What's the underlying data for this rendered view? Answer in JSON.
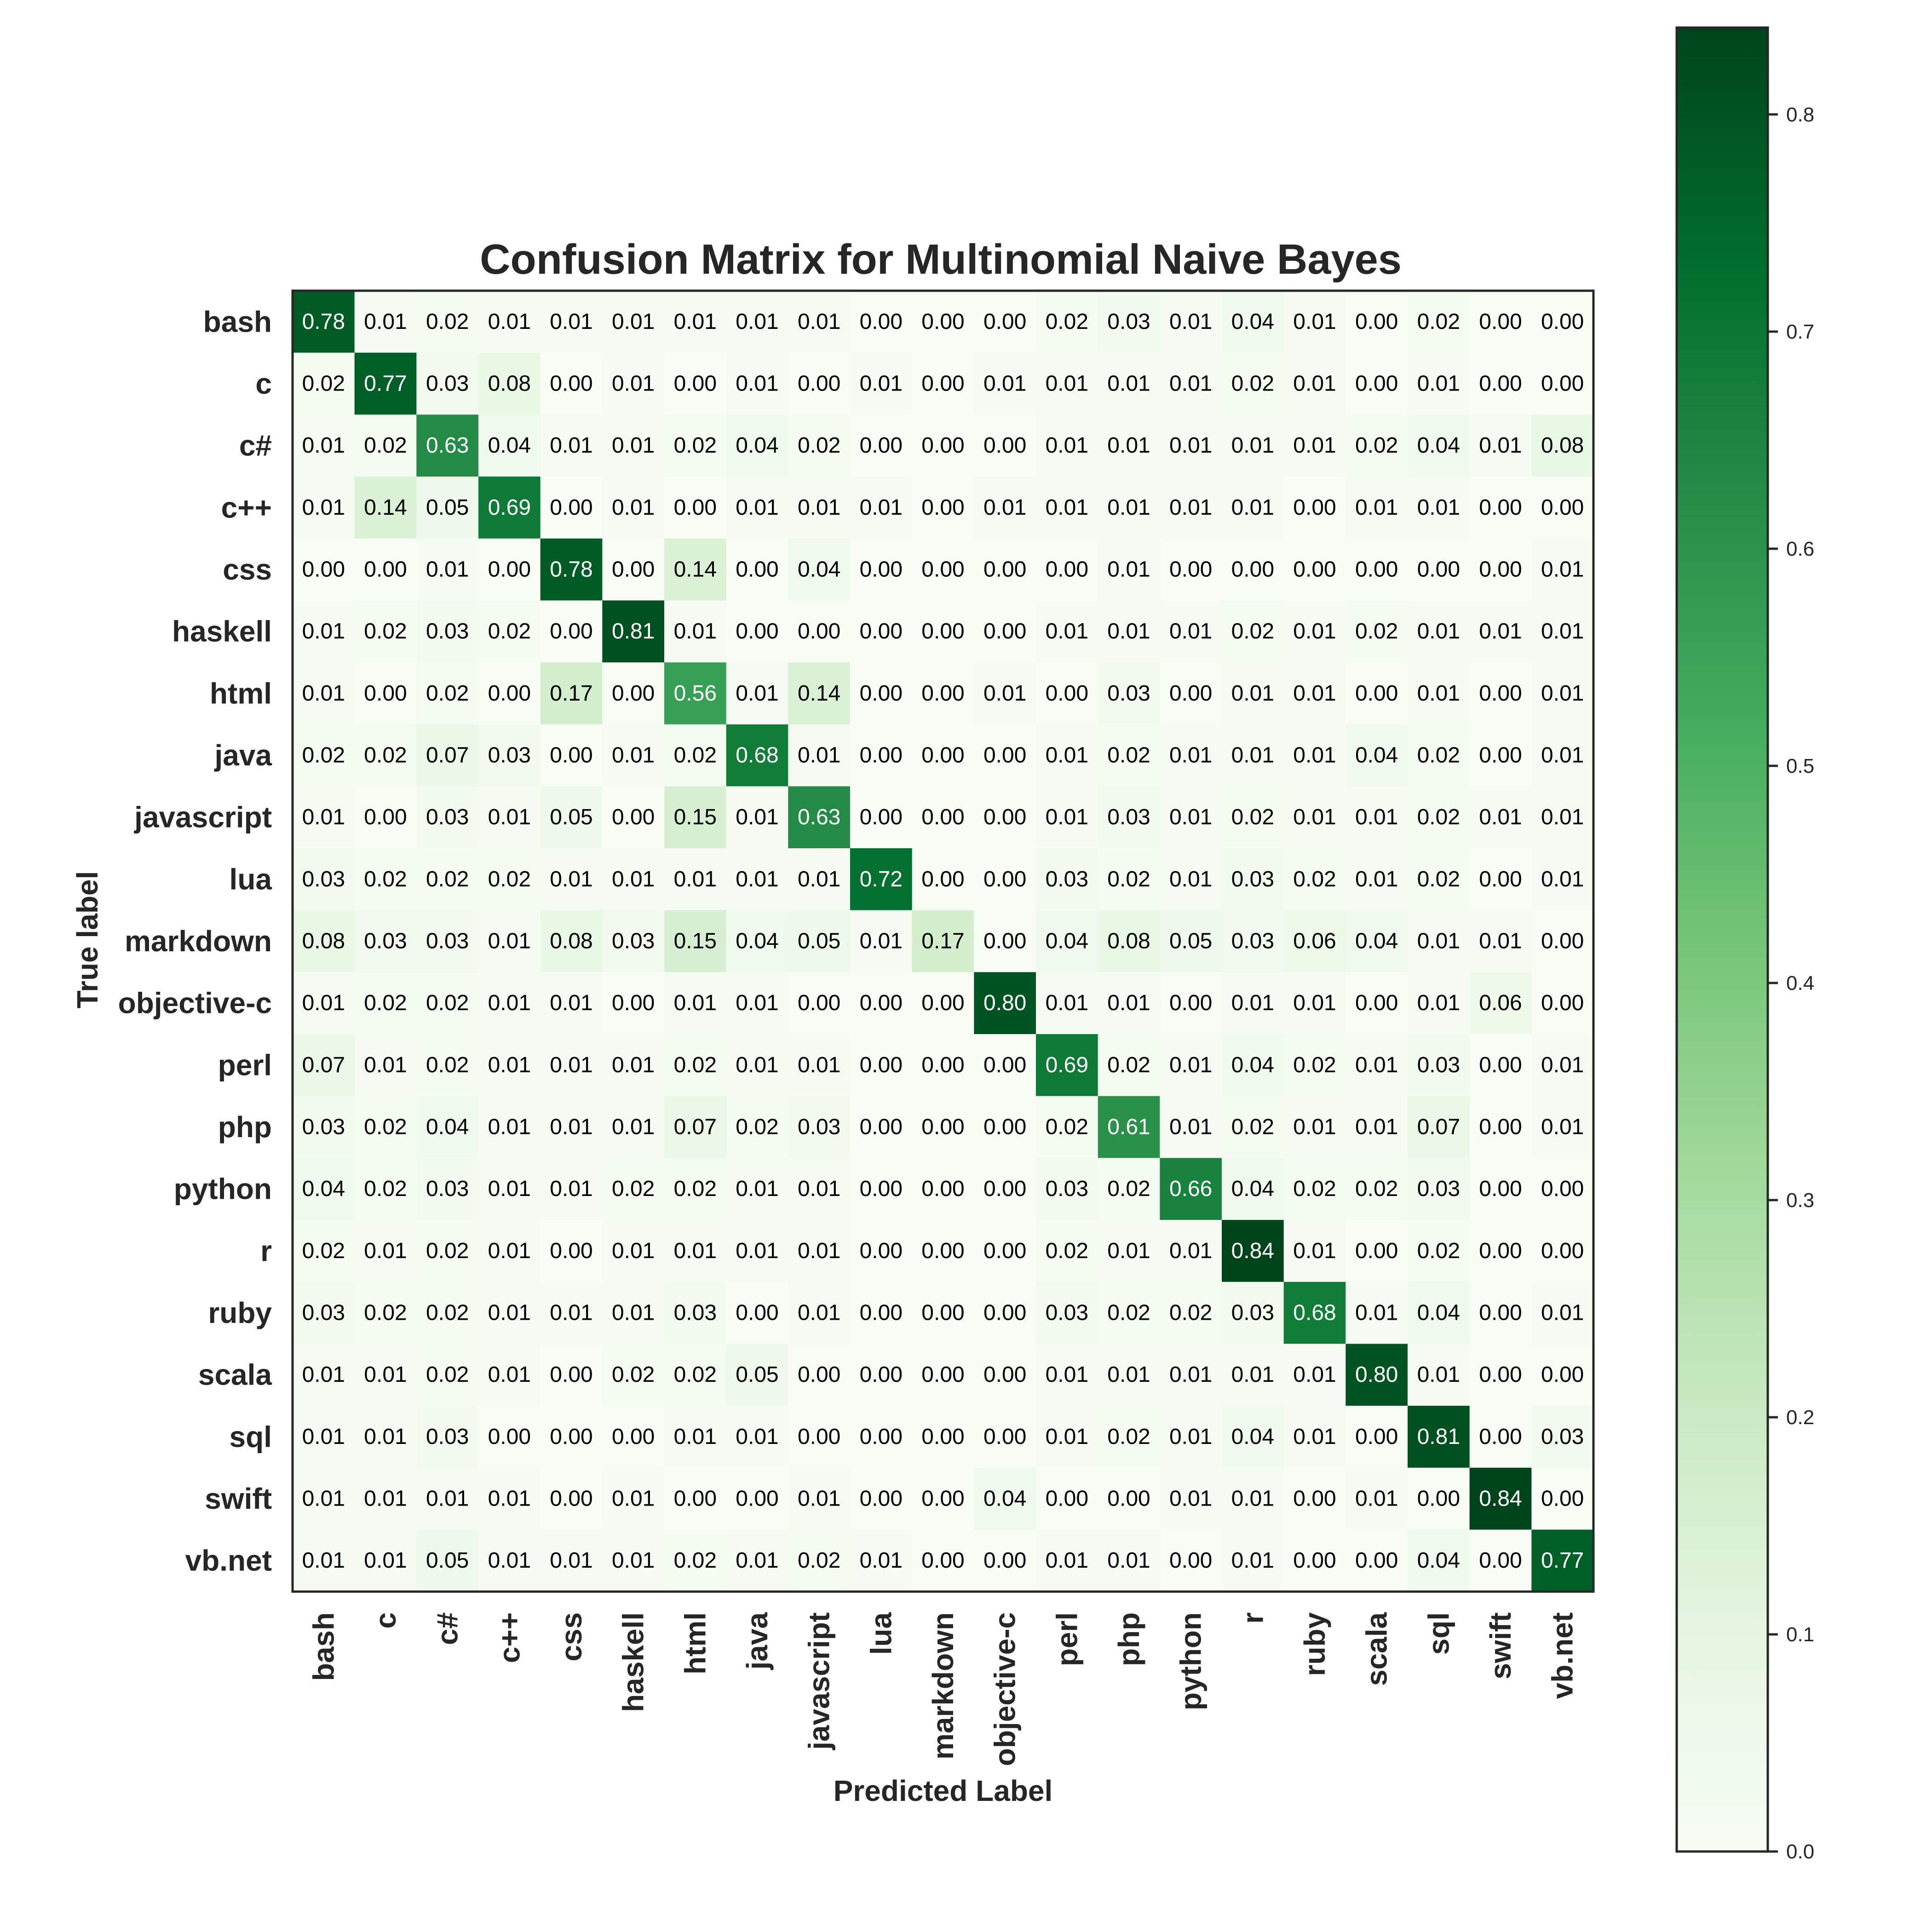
{
  "chart_data": {
    "type": "heatmap",
    "title": "Confusion Matrix for Multinomial Naive Bayes",
    "xlabel": "Predicted Label",
    "ylabel": "True label",
    "categories": [
      "bash",
      "c",
      "c#",
      "c++",
      "css",
      "haskell",
      "html",
      "java",
      "javascript",
      "lua",
      "markdown",
      "objective-c",
      "perl",
      "php",
      "python",
      "r",
      "ruby",
      "scala",
      "sql",
      "swift",
      "vb.net"
    ],
    "values": [
      [
        "0.78",
        "0.01",
        "0.02",
        "0.01",
        "0.01",
        "0.01",
        "0.01",
        "0.01",
        "0.01",
        "0.00",
        "0.00",
        "0.00",
        "0.02",
        "0.03",
        "0.01",
        "0.04",
        "0.01",
        "0.00",
        "0.02",
        "0.00",
        "0.00"
      ],
      [
        "0.02",
        "0.77",
        "0.03",
        "0.08",
        "0.00",
        "0.01",
        "0.00",
        "0.01",
        "0.00",
        "0.01",
        "0.00",
        "0.01",
        "0.01",
        "0.01",
        "0.01",
        "0.02",
        "0.01",
        "0.00",
        "0.01",
        "0.00",
        "0.00"
      ],
      [
        "0.01",
        "0.02",
        "0.63",
        "0.04",
        "0.01",
        "0.01",
        "0.02",
        "0.04",
        "0.02",
        "0.00",
        "0.00",
        "0.00",
        "0.01",
        "0.01",
        "0.01",
        "0.01",
        "0.01",
        "0.02",
        "0.04",
        "0.01",
        "0.08"
      ],
      [
        "0.01",
        "0.14",
        "0.05",
        "0.69",
        "0.00",
        "0.01",
        "0.00",
        "0.01",
        "0.01",
        "0.01",
        "0.00",
        "0.01",
        "0.01",
        "0.01",
        "0.01",
        "0.01",
        "0.00",
        "0.01",
        "0.01",
        "0.00",
        "0.00"
      ],
      [
        "0.00",
        "0.00",
        "0.01",
        "0.00",
        "0.78",
        "0.00",
        "0.14",
        "0.00",
        "0.04",
        "0.00",
        "0.00",
        "0.00",
        "0.00",
        "0.01",
        "0.00",
        "0.00",
        "0.00",
        "0.00",
        "0.00",
        "0.00",
        "0.01"
      ],
      [
        "0.01",
        "0.02",
        "0.03",
        "0.02",
        "0.00",
        "0.81",
        "0.01",
        "0.00",
        "0.00",
        "0.00",
        "0.00",
        "0.00",
        "0.01",
        "0.01",
        "0.01",
        "0.02",
        "0.01",
        "0.02",
        "0.01",
        "0.01",
        "0.01"
      ],
      [
        "0.01",
        "0.00",
        "0.02",
        "0.00",
        "0.17",
        "0.00",
        "0.56",
        "0.01",
        "0.14",
        "0.00",
        "0.00",
        "0.01",
        "0.00",
        "0.03",
        "0.00",
        "0.01",
        "0.01",
        "0.00",
        "0.01",
        "0.00",
        "0.01"
      ],
      [
        "0.02",
        "0.02",
        "0.07",
        "0.03",
        "0.00",
        "0.01",
        "0.02",
        "0.68",
        "0.01",
        "0.00",
        "0.00",
        "0.00",
        "0.01",
        "0.02",
        "0.01",
        "0.01",
        "0.01",
        "0.04",
        "0.02",
        "0.00",
        "0.01"
      ],
      [
        "0.01",
        "0.00",
        "0.03",
        "0.01",
        "0.05",
        "0.00",
        "0.15",
        "0.01",
        "0.63",
        "0.00",
        "0.00",
        "0.00",
        "0.01",
        "0.03",
        "0.01",
        "0.02",
        "0.01",
        "0.01",
        "0.02",
        "0.01",
        "0.01"
      ],
      [
        "0.03",
        "0.02",
        "0.02",
        "0.02",
        "0.01",
        "0.01",
        "0.01",
        "0.01",
        "0.01",
        "0.72",
        "0.00",
        "0.00",
        "0.03",
        "0.02",
        "0.01",
        "0.03",
        "0.02",
        "0.01",
        "0.02",
        "0.00",
        "0.01"
      ],
      [
        "0.08",
        "0.03",
        "0.03",
        "0.01",
        "0.08",
        "0.03",
        "0.15",
        "0.04",
        "0.05",
        "0.01",
        "0.17",
        "0.00",
        "0.04",
        "0.08",
        "0.05",
        "0.03",
        "0.06",
        "0.04",
        "0.01",
        "0.01",
        "0.00"
      ],
      [
        "0.01",
        "0.02",
        "0.02",
        "0.01",
        "0.01",
        "0.00",
        "0.01",
        "0.01",
        "0.00",
        "0.00",
        "0.00",
        "0.80",
        "0.01",
        "0.01",
        "0.00",
        "0.01",
        "0.01",
        "0.00",
        "0.01",
        "0.06",
        "0.00"
      ],
      [
        "0.07",
        "0.01",
        "0.02",
        "0.01",
        "0.01",
        "0.01",
        "0.02",
        "0.01",
        "0.01",
        "0.00",
        "0.00",
        "0.00",
        "0.69",
        "0.02",
        "0.01",
        "0.04",
        "0.02",
        "0.01",
        "0.03",
        "0.00",
        "0.01"
      ],
      [
        "0.03",
        "0.02",
        "0.04",
        "0.01",
        "0.01",
        "0.01",
        "0.07",
        "0.02",
        "0.03",
        "0.00",
        "0.00",
        "0.00",
        "0.02",
        "0.61",
        "0.01",
        "0.02",
        "0.01",
        "0.01",
        "0.07",
        "0.00",
        "0.01"
      ],
      [
        "0.04",
        "0.02",
        "0.03",
        "0.01",
        "0.01",
        "0.02",
        "0.02",
        "0.01",
        "0.01",
        "0.00",
        "0.00",
        "0.00",
        "0.03",
        "0.02",
        "0.66",
        "0.04",
        "0.02",
        "0.02",
        "0.03",
        "0.00",
        "0.00"
      ],
      [
        "0.02",
        "0.01",
        "0.02",
        "0.01",
        "0.00",
        "0.01",
        "0.01",
        "0.01",
        "0.01",
        "0.00",
        "0.00",
        "0.00",
        "0.02",
        "0.01",
        "0.01",
        "0.84",
        "0.01",
        "0.00",
        "0.02",
        "0.00",
        "0.00"
      ],
      [
        "0.03",
        "0.02",
        "0.02",
        "0.01",
        "0.01",
        "0.01",
        "0.03",
        "0.00",
        "0.01",
        "0.00",
        "0.00",
        "0.00",
        "0.03",
        "0.02",
        "0.02",
        "0.03",
        "0.68",
        "0.01",
        "0.04",
        "0.00",
        "0.01"
      ],
      [
        "0.01",
        "0.01",
        "0.02",
        "0.01",
        "0.00",
        "0.02",
        "0.02",
        "0.05",
        "0.00",
        "0.00",
        "0.00",
        "0.00",
        "0.01",
        "0.01",
        "0.01",
        "0.01",
        "0.01",
        "0.80",
        "0.01",
        "0.00",
        "0.00"
      ],
      [
        "0.01",
        "0.01",
        "0.03",
        "0.00",
        "0.00",
        "0.00",
        "0.01",
        "0.01",
        "0.00",
        "0.00",
        "0.00",
        "0.00",
        "0.01",
        "0.02",
        "0.01",
        "0.04",
        "0.01",
        "0.00",
        "0.81",
        "0.00",
        "0.03"
      ],
      [
        "0.01",
        "0.01",
        "0.01",
        "0.01",
        "0.00",
        "0.01",
        "0.00",
        "0.00",
        "0.01",
        "0.00",
        "0.00",
        "0.04",
        "0.00",
        "0.00",
        "0.01",
        "0.01",
        "0.00",
        "0.01",
        "0.00",
        "0.84",
        "0.00"
      ],
      [
        "0.01",
        "0.01",
        "0.05",
        "0.01",
        "0.01",
        "0.01",
        "0.02",
        "0.01",
        "0.02",
        "0.01",
        "0.00",
        "0.00",
        "0.01",
        "0.01",
        "0.00",
        "0.01",
        "0.00",
        "0.00",
        "0.04",
        "0.00",
        "0.77"
      ]
    ],
    "colorbar": {
      "range": [
        0,
        0.84
      ],
      "ticks": [
        "0.0",
        "0.1",
        "0.2",
        "0.3",
        "0.4",
        "0.5",
        "0.6",
        "0.7",
        "0.8"
      ],
      "colormap": [
        "#f7fcf5",
        "#e5f5e0",
        "#c7e9c0",
        "#a1d99b",
        "#74c476",
        "#41ab5d",
        "#238b45",
        "#006d2c",
        "#00441b"
      ]
    },
    "text_colors": {
      "light": "#ffffff",
      "dark": "#000000"
    },
    "grid": false
  }
}
